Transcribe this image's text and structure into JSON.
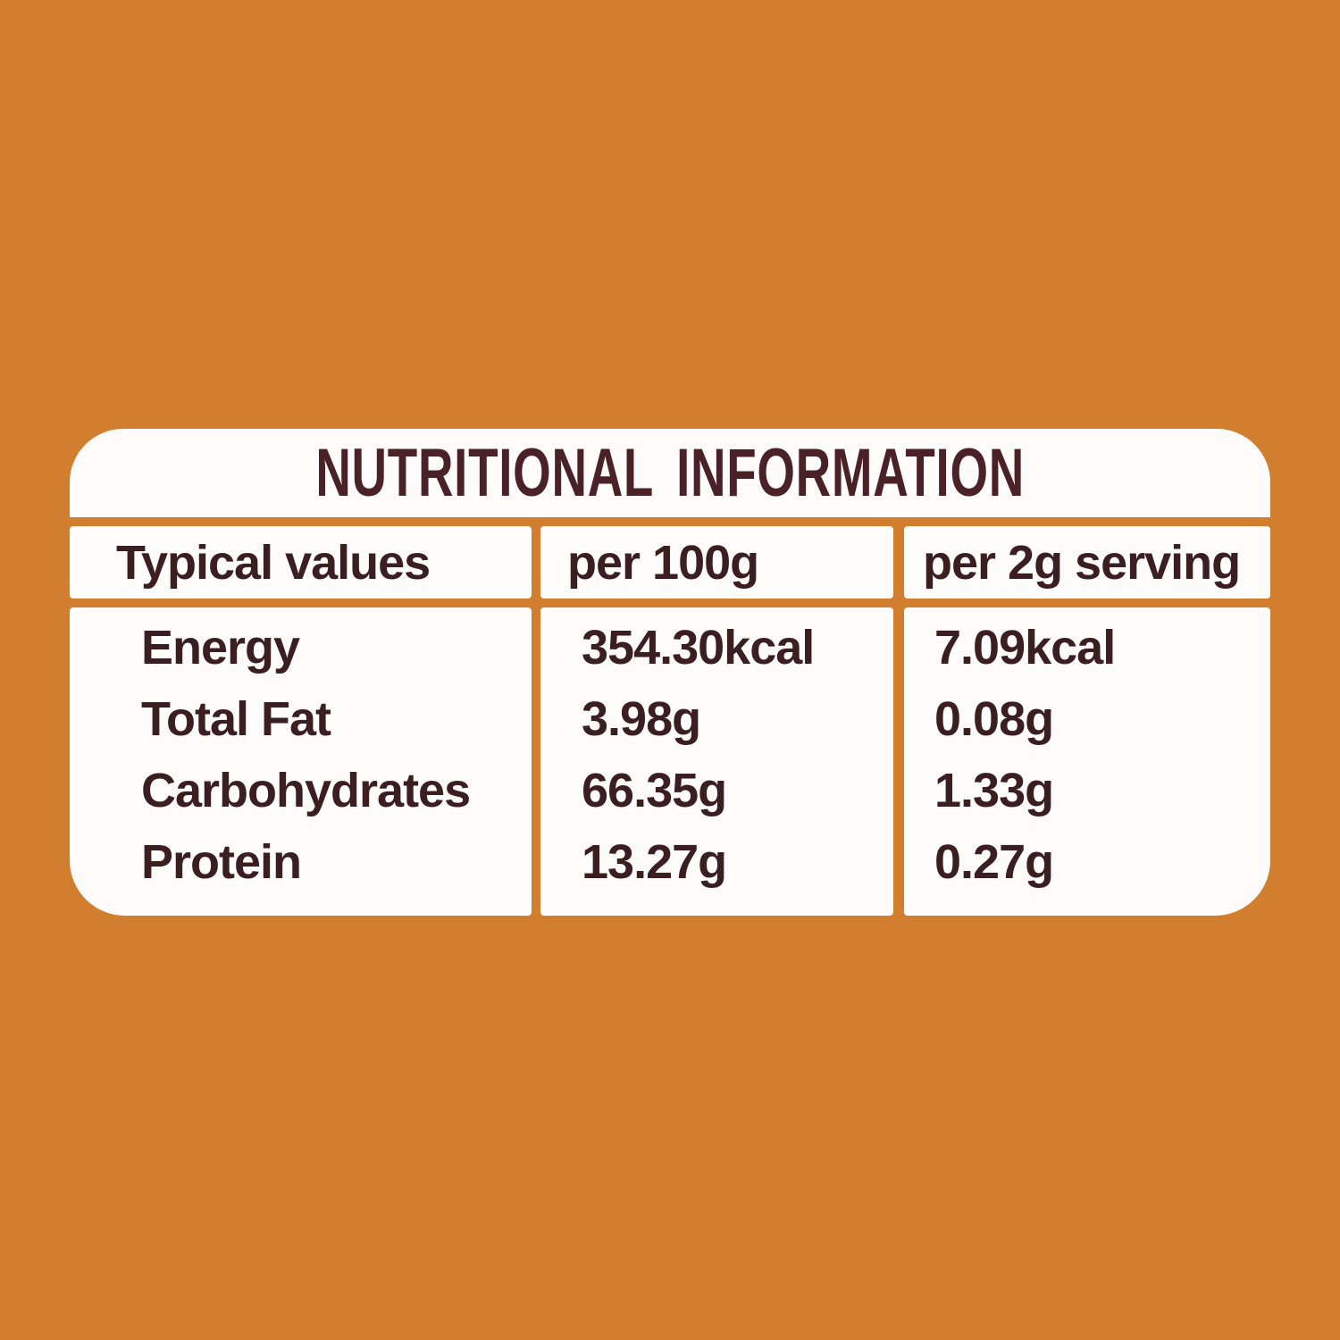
{
  "title": "NUTRITIONAL INFORMATION",
  "table": {
    "columns": [
      "Typical values",
      "per 100g",
      "per 2g serving"
    ],
    "rows": [
      {
        "label": "Energy",
        "per_100g": "354.30kcal",
        "per_serving": "7.09kcal"
      },
      {
        "label": "Total Fat",
        "per_100g": "3.98g",
        "per_serving": "0.08g"
      },
      {
        "label": "Carbohydrates",
        "per_100g": "66.35g",
        "per_serving": "1.33g"
      },
      {
        "label": "Protein",
        "per_100g": "13.27g",
        "per_serving": "0.27g"
      }
    ]
  },
  "colors": {
    "background": "#D17E2E",
    "panel": "#FDFCFA",
    "title_text": "#4A2127",
    "body_text": "#3B1E20"
  }
}
